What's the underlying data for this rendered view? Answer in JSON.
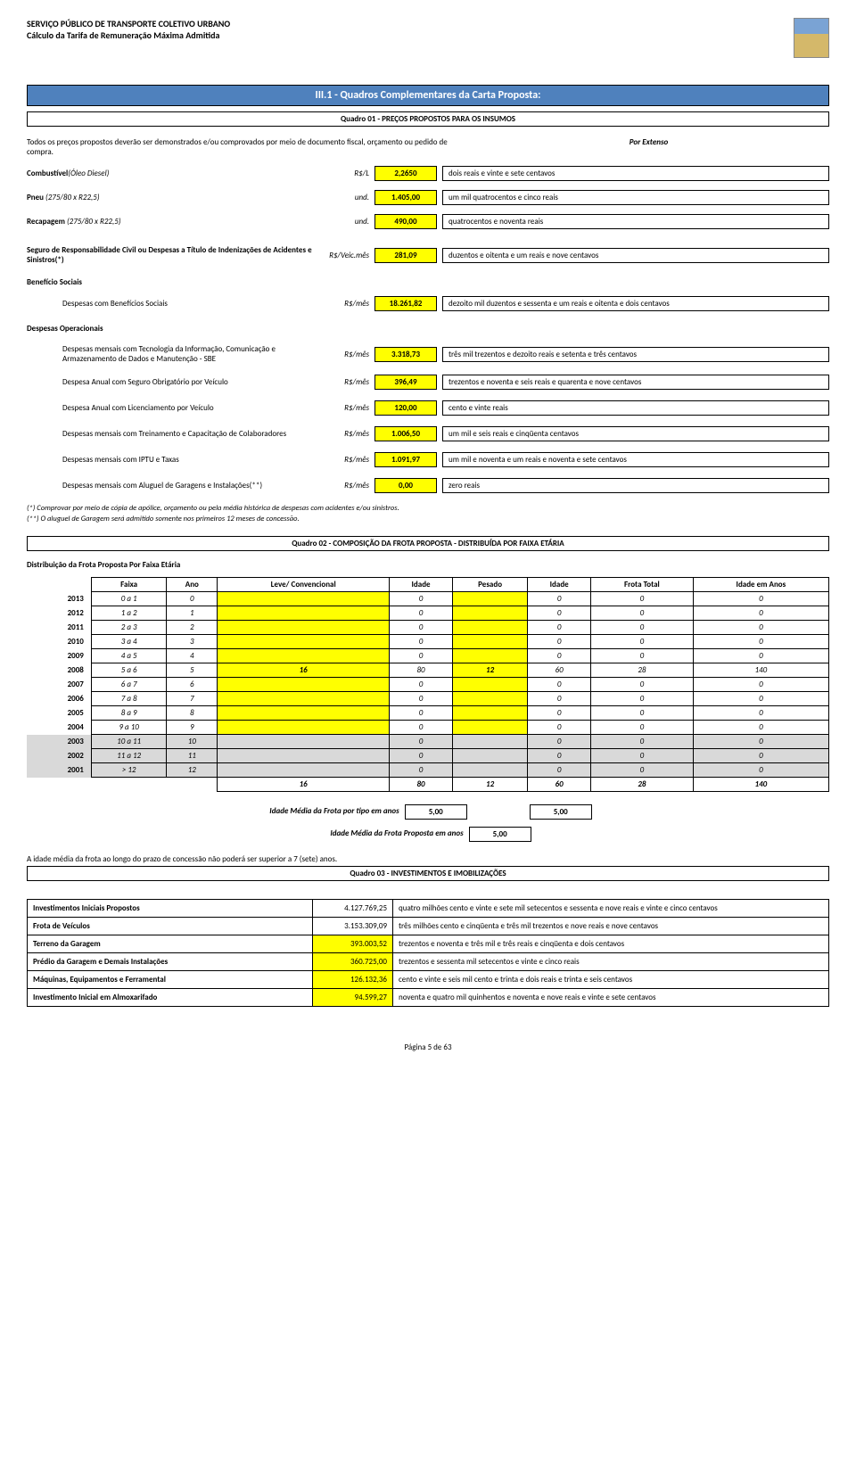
{
  "header": {
    "line1": "SERVIÇO PÚBLICO DE TRANSPORTE COLETIVO URBANO",
    "line2": "Cálculo da Tarifa de Remuneração Máxima Admitida"
  },
  "section_title": "III.1 - Quadros Complementares da Carta Proposta:",
  "quadro01_title": "Quadro 01 - PREÇOS PROPOSTOS PARA OS INSUMOS",
  "intro_text": "Todos os preços propostos deverão ser  demonstrados e/ou comprovados por meio de documento fiscal, orçamento ou pedido de compra.",
  "por_extenso": "Por Extenso",
  "prices": [
    {
      "label": "Combustível",
      "italic": "(Óleo Diesel)",
      "unit": "R$/L",
      "value": "2,2650",
      "ext": "dois reais e vinte e sete centavos"
    },
    {
      "label": "Pneu ",
      "italic": "(275/80 x R22,5)",
      "unit": "und.",
      "value": "1.405,00",
      "ext": "um mil quatrocentos e cinco reais"
    },
    {
      "label": "Recapagem ",
      "italic": "(275/80 x R22,5)",
      "unit": "und.",
      "value": "490,00",
      "ext": "quatrocentos e noventa reais"
    }
  ],
  "seguro": {
    "label": "Seguro de Responsabilidade Civil ou Despesas a Título de Indenizações de Acidentes e Sinistros(*)",
    "unit": "R$/Veic.mês",
    "value": "281,09",
    "ext": "duzentos e oitenta e um reais e nove centavos"
  },
  "beneficio_header": "Benefício Sociais",
  "beneficio": {
    "label": "Despesas com Benefícios Sociais",
    "unit": "R$/mês",
    "value": "18.261,82",
    "ext": "dezoito mil duzentos e sessenta e um reais e oitenta e dois centavos"
  },
  "despesas_header": "Despesas Operacionais",
  "despesas": [
    {
      "label": "Despesas mensais com Tecnologia da Informação, Comunicação e Armazenamento de Dados e Manutenção - SBE",
      "unit": "R$/mês",
      "value": "3.318,73",
      "ext": "três mil trezentos e dezoito reais e setenta e três centavos"
    },
    {
      "label": "Despesa Anual com Seguro Obrigatório por Veículo",
      "unit": "R$/mês",
      "value": "396,49",
      "ext": "trezentos e noventa e seis reais e quarenta e nove centavos"
    },
    {
      "label": "Despesa Anual com Licenciamento por Veículo",
      "unit": "R$/mês",
      "value": "120,00",
      "ext": "cento e vinte reais"
    },
    {
      "label": "Despesas mensais com Treinamento e Capacitação de Colaboradores",
      "unit": "R$/mês",
      "value": "1.006,50",
      "ext": "um mil e seis reais e cinqüenta centavos"
    },
    {
      "label": "Despesas mensais com IPTU e Taxas",
      "unit": "R$/mês",
      "value": "1.091,97",
      "ext": "um mil e noventa e um reais e noventa e sete centavos"
    },
    {
      "label": "Despesas mensais com Aluguel de Garagens e Instalações(**)",
      "unit": "R$/mês",
      "value": "0,00",
      "ext": "zero reais"
    }
  ],
  "note1": "(*) Comprovar por meio de cópia de apólice, orçamento ou pela média histórica de despesas com acidentes e/ou sinistros.",
  "note2": "(**) O aluguel de Garagem será admitido somente nos primeiros 12 meses de concessão.",
  "quadro02_title": "Quadro 02 - COMPOSIÇÃO DA FROTA PROPOSTA - DISTRIBUÍDA POR FAIXA ETÁRIA",
  "dist_caption": "Distribuição da Frota Proposta Por Faixa Etária",
  "frota_headers": [
    "Faixa",
    "Ano",
    "Leve/ Convencional",
    "Idade",
    "Pesado",
    "Idade",
    "Frota Total",
    "Idade em Anos"
  ],
  "frota_rows": [
    {
      "year": "2013",
      "faixa": "0 a 1",
      "ano": "0",
      "leve": "",
      "il": "0",
      "pesado": "",
      "ip": "0",
      "ft": "0",
      "ia": "0"
    },
    {
      "year": "2012",
      "faixa": "1 a 2",
      "ano": "1",
      "leve": "",
      "il": "0",
      "pesado": "",
      "ip": "0",
      "ft": "0",
      "ia": "0"
    },
    {
      "year": "2011",
      "faixa": "2 a 3",
      "ano": "2",
      "leve": "",
      "il": "0",
      "pesado": "",
      "ip": "0",
      "ft": "0",
      "ia": "0"
    },
    {
      "year": "2010",
      "faixa": "3 a 4",
      "ano": "3",
      "leve": "",
      "il": "0",
      "pesado": "",
      "ip": "0",
      "ft": "0",
      "ia": "0"
    },
    {
      "year": "2009",
      "faixa": "4 a 5",
      "ano": "4",
      "leve": "",
      "il": "0",
      "pesado": "",
      "ip": "0",
      "ft": "0",
      "ia": "0"
    },
    {
      "year": "2008",
      "faixa": "5 a 6",
      "ano": "5",
      "leve": "16",
      "il": "80",
      "pesado": "12",
      "ip": "60",
      "ft": "28",
      "ia": "140",
      "hl": true
    },
    {
      "year": "2007",
      "faixa": "6 a 7",
      "ano": "6",
      "leve": "",
      "il": "0",
      "pesado": "",
      "ip": "0",
      "ft": "0",
      "ia": "0"
    },
    {
      "year": "2006",
      "faixa": "7 a 8",
      "ano": "7",
      "leve": "",
      "il": "0",
      "pesado": "",
      "ip": "0",
      "ft": "0",
      "ia": "0"
    },
    {
      "year": "2005",
      "faixa": "8 a 9",
      "ano": "8",
      "leve": "",
      "il": "0",
      "pesado": "",
      "ip": "0",
      "ft": "0",
      "ia": "0"
    },
    {
      "year": "2004",
      "faixa": "9 a 10",
      "ano": "9",
      "leve": "",
      "il": "0",
      "pesado": "",
      "ip": "0",
      "ft": "0",
      "ia": "0"
    },
    {
      "year": "2003",
      "faixa": "10 a 11",
      "ano": "10",
      "leve": "",
      "il": "0",
      "pesado": "",
      "ip": "0",
      "ft": "0",
      "ia": "0",
      "grey": true
    },
    {
      "year": "2002",
      "faixa": "11 a 12",
      "ano": "11",
      "leve": "",
      "il": "0",
      "pesado": "",
      "ip": "0",
      "ft": "0",
      "ia": "0",
      "grey": true
    },
    {
      "year": "2001",
      "faixa": "> 12",
      "ano": "12",
      "leve": "",
      "il": "0",
      "pesado": "",
      "ip": "0",
      "ft": "0",
      "ia": "0",
      "grey": true
    }
  ],
  "frota_total": {
    "leve": "16",
    "il": "80",
    "pesado": "12",
    "ip": "60",
    "ft": "28",
    "ia": "140"
  },
  "idade_media": {
    "label1": "Idade Média da Frota por tipo em anos",
    "v1": "5,00",
    "v2": "5,00",
    "label2": "Idade Média da Frota Proposta em anos",
    "v3": "5,00"
  },
  "idade_note": "A idade média da frota ao longo do prazo de concessão não poderá ser superior a 7 (sete) anos.",
  "quadro03_title": "Quadro 03 - INVESTIMENTOS E IMOBILIZAÇÕES",
  "invest": [
    {
      "label": "Investimentos Iniciais Propostos",
      "value": "4.127.769,25",
      "ext": "quatro milhões cento e vinte e sete mil setecentos e sessenta e nove reais e vinte e cinco centavos",
      "yellow": false
    },
    {
      "label": "Frota de Veículos",
      "value": "3.153.309,09",
      "ext": "três milhões cento e cinqüenta e três mil trezentos e nove reais e nove centavos",
      "yellow": false
    },
    {
      "label": "Terreno da Garagem",
      "value": "393.003,52",
      "ext": "trezentos e noventa e três mil e três reais e cinqüenta e dois centavos",
      "yellow": true
    },
    {
      "label": "Prédio da Garagem e Demais Instalações",
      "value": "360.725,00",
      "ext": "trezentos e sessenta mil setecentos e vinte e cinco reais",
      "yellow": true
    },
    {
      "label": "Máquinas, Equipamentos e Ferramental",
      "value": "126.132,36",
      "ext": "cento e vinte e seis mil cento e trinta e dois reais e trinta e seis centavos",
      "yellow": true
    },
    {
      "label": "Investimento Inicial em Almoxarifado",
      "value": "94.599,27",
      "ext": "noventa e quatro mil quinhentos e noventa e nove reais e vinte e sete centavos",
      "yellow": true
    }
  ],
  "footer": "Página 5 de 63",
  "colors": {
    "bar": "#4f81bd",
    "yellow": "#ffff00",
    "grey": "#d9d9d9"
  }
}
